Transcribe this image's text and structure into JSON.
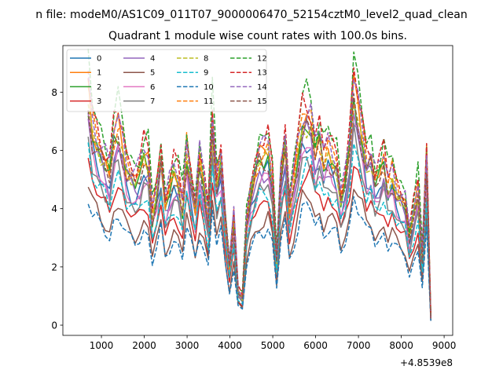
{
  "figure": {
    "suptitle": "n file: modeM0/AS1C09_011T07_9000006470_52154cztM0_level2_quad_clean"
  },
  "chart_data": {
    "type": "line",
    "title": "Quadrant 1 module wise count rates with 100.0s bins.",
    "xlabel": "",
    "ylabel": "",
    "x_offset_label": "+4.8539e8",
    "xlim": [
      100,
      9200
    ],
    "ylim": [
      -0.35,
      9.6
    ],
    "xticks": [
      1000,
      2000,
      3000,
      4000,
      5000,
      6000,
      7000,
      8000,
      9000
    ],
    "yticks": [
      0,
      2,
      4,
      6,
      8
    ],
    "legend_position": "upper-left",
    "legend_columns": 4,
    "x": [
      690,
      790,
      890,
      990,
      1090,
      1190,
      1290,
      1390,
      1490,
      1590,
      1690,
      1790,
      1890,
      1990,
      2090,
      2190,
      2290,
      2390,
      2490,
      2590,
      2690,
      2790,
      2890,
      2990,
      3090,
      3190,
      3290,
      3390,
      3490,
      3590,
      3690,
      3790,
      3890,
      3990,
      4090,
      4190,
      4290,
      4390,
      4490,
      4590,
      4690,
      4790,
      4890,
      4990,
      5090,
      5190,
      5290,
      5390,
      5490,
      5590,
      5690,
      5790,
      5890,
      5990,
      6090,
      6190,
      6290,
      6390,
      6490,
      6590,
      6690,
      6790,
      6890,
      6990,
      7090,
      7190,
      7290,
      7390,
      7490,
      7590,
      7690,
      7790,
      7890,
      7990,
      8090,
      8190,
      8290,
      8390,
      8490,
      8590,
      8690
    ],
    "shape": [
      1.0,
      0.85,
      0.8,
      0.75,
      0.7,
      0.65,
      0.8,
      0.85,
      0.78,
      0.68,
      0.65,
      0.62,
      0.65,
      0.72,
      0.7,
      0.48,
      0.58,
      0.72,
      0.52,
      0.58,
      0.65,
      0.62,
      0.52,
      0.75,
      0.62,
      0.5,
      0.7,
      0.6,
      0.45,
      0.88,
      0.62,
      0.72,
      0.45,
      0.25,
      0.45,
      0.15,
      0.12,
      0.45,
      0.58,
      0.65,
      0.72,
      0.72,
      0.75,
      0.62,
      0.28,
      0.65,
      0.78,
      0.5,
      0.62,
      0.75,
      0.88,
      0.9,
      0.88,
      0.75,
      0.8,
      0.7,
      0.75,
      0.72,
      0.7,
      0.55,
      0.62,
      0.75,
      1.0,
      0.92,
      0.82,
      0.7,
      0.72,
      0.62,
      0.65,
      0.7,
      0.6,
      0.65,
      0.58,
      0.55,
      0.52,
      0.38,
      0.48,
      0.58,
      0.3,
      0.72,
      0.03
    ],
    "series": [
      {
        "name": "0",
        "color": "#1f77b4",
        "dash": "solid",
        "scale": 7.0
      },
      {
        "name": "1",
        "color": "#ff7f0e",
        "dash": "solid",
        "scale": 8.0
      },
      {
        "name": "2",
        "color": "#2ca02c",
        "dash": "solid",
        "scale": 7.7
      },
      {
        "name": "3",
        "color": "#d62728",
        "dash": "solid",
        "scale": 5.8
      },
      {
        "name": "4",
        "color": "#9467bd",
        "dash": "solid",
        "scale": 7.2
      },
      {
        "name": "5",
        "color": "#8c564b",
        "dash": "solid",
        "scale": 4.9
      },
      {
        "name": "6",
        "color": "#e377c2",
        "dash": "solid",
        "scale": 6.8
      },
      {
        "name": "7",
        "color": "#7f7f7f",
        "dash": "solid",
        "scale": 6.4
      },
      {
        "name": "8",
        "color": "#bcbd22",
        "dash": "dashed",
        "scale": 7.8
      },
      {
        "name": "9",
        "color": "#17becf",
        "dash": "dashed",
        "scale": 6.2
      },
      {
        "name": "10",
        "color": "#1f77b4",
        "dash": "dashed",
        "scale": 4.5
      },
      {
        "name": "11",
        "color": "#ff7f0e",
        "dash": "dashed",
        "scale": 8.1
      },
      {
        "name": "12",
        "color": "#2ca02c",
        "dash": "dashed",
        "scale": 8.9
      },
      {
        "name": "13",
        "color": "#d62728",
        "dash": "dashed",
        "scale": 8.6
      },
      {
        "name": "14",
        "color": "#9467bd",
        "dash": "dashed",
        "scale": 8.4
      },
      {
        "name": "15",
        "color": "#8c564b",
        "dash": "dashed",
        "scale": 7.6
      }
    ]
  }
}
